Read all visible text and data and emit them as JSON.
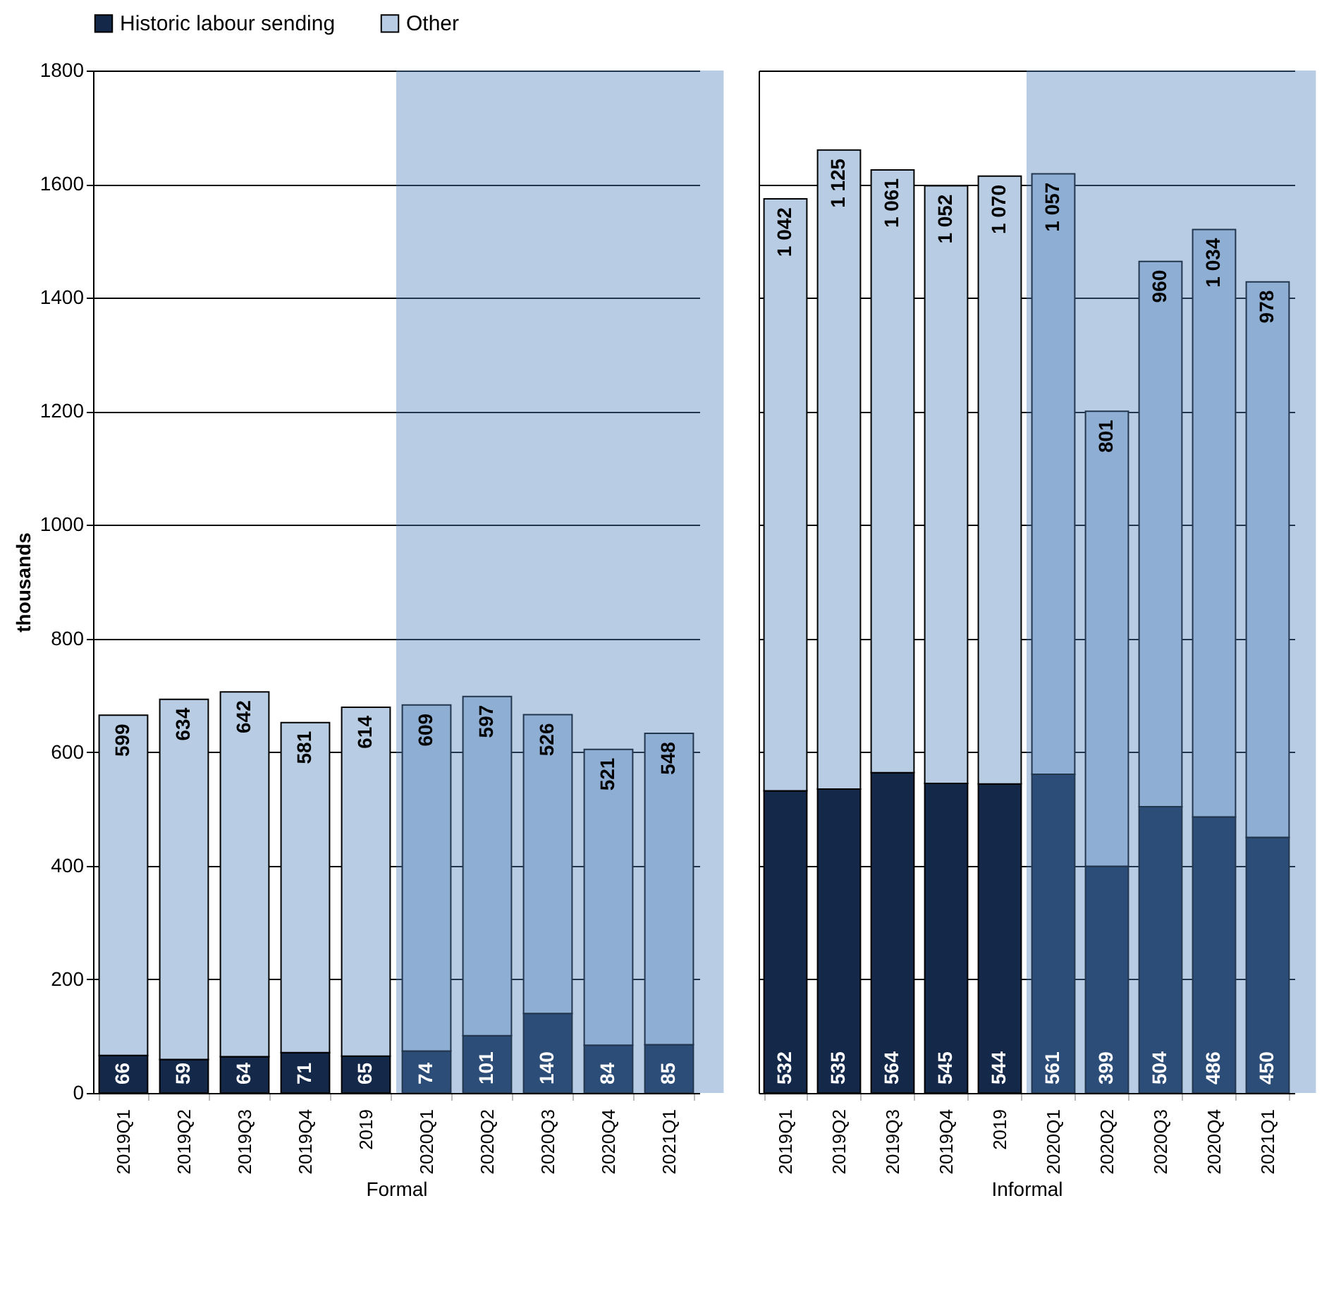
{
  "chart_data": [
    {
      "type": "bar",
      "stacked": true,
      "xlabel": "Formal",
      "ylabel": "thousands",
      "categories": [
        "2019Q1",
        "2019Q2",
        "2019Q3",
        "2019Q4",
        "2019",
        "2020Q1",
        "2020Q2",
        "2020Q3",
        "2020Q4",
        "2021Q1"
      ],
      "series": [
        {
          "name": "Historic labour sending",
          "color": "#14284a",
          "values": [
            66,
            59,
            64,
            71,
            65,
            74,
            101,
            140,
            84,
            85
          ],
          "value_labels": [
            "66",
            "59",
            "64",
            "71",
            "65",
            "74",
            "101",
            "140",
            "84",
            "85"
          ]
        },
        {
          "name": "Other",
          "color": "#b8cce4",
          "values": [
            599,
            634,
            642,
            581,
            614,
            609,
            597,
            526,
            521,
            548
          ],
          "value_labels": [
            "599",
            "634",
            "642",
            "581",
            "614",
            "609",
            "597",
            "526",
            "521",
            "548"
          ]
        }
      ],
      "ylim": [
        0,
        1800
      ],
      "yticks": [
        0,
        200,
        400,
        600,
        800,
        1000,
        1200,
        1400,
        1600,
        1800
      ],
      "grid": "y",
      "legend": "top",
      "bands": [
        {
          "axis": "x",
          "from": "2020Q1",
          "to": "2021Q1",
          "color": "#5282bd"
        }
      ]
    },
    {
      "type": "bar",
      "stacked": true,
      "xlabel": "Informal",
      "categories": [
        "2019Q1",
        "2019Q2",
        "2019Q3",
        "2019Q4",
        "2019",
        "2020Q1",
        "2020Q2",
        "2020Q3",
        "2020Q4",
        "2021Q1"
      ],
      "series": [
        {
          "color": "#14284a",
          "values": [
            532,
            535,
            564,
            545,
            544,
            561,
            399,
            504,
            486,
            450
          ],
          "value_labels": [
            "532",
            "535",
            "564",
            "545",
            "544",
            "561",
            "399",
            "504",
            "486",
            "450"
          ]
        },
        {
          "color": "#b8cce4",
          "values": [
            1042,
            1125,
            1061,
            1052,
            1070,
            1057,
            801,
            960,
            1034,
            978
          ],
          "value_labels": [
            "1 042",
            "1 125",
            "1 061",
            "1 052",
            "1 070",
            "1 057",
            "801",
            "960",
            "1 034",
            "978"
          ]
        }
      ],
      "ylim": [
        0,
        1800
      ],
      "yticks": [
        0,
        200,
        400,
        600,
        800,
        1000,
        1200,
        1400,
        1600,
        1800
      ],
      "grid": "y",
      "tick_labels": "x",
      "bands": [
        {
          "axis": "x",
          "from": "2020Q1",
          "to": "2021Q1",
          "color": "#5282bd"
        }
      ]
    }
  ]
}
